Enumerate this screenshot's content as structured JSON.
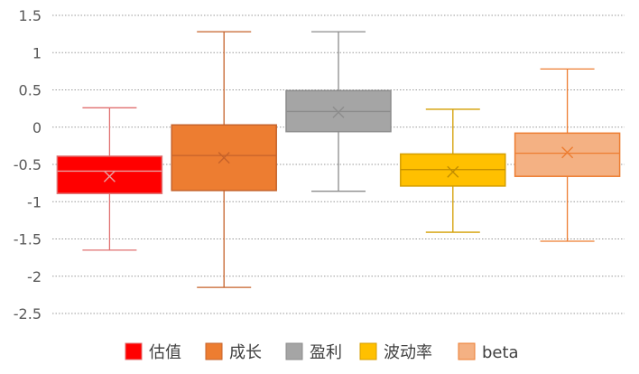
{
  "chart_data": {
    "type": "boxplot",
    "ylim": [
      -2.5,
      1.5
    ],
    "yticks": [
      "1.5",
      "1",
      "0.5",
      "0",
      "-0.5",
      "-1",
      "-1.5",
      "-2",
      "-2.5"
    ],
    "grid": "horizontal dotted",
    "legend_position": "bottom",
    "series": [
      {
        "name": "估值",
        "color": "#FF0000",
        "border": "#E07070",
        "mark": "#E8A0A0",
        "min": -1.65,
        "q1": -0.89,
        "median": -0.59,
        "q3": -0.39,
        "max": 0.26,
        "mean": -0.66
      },
      {
        "name": "成长",
        "color": "#ED7D31",
        "border": "#C5622A",
        "mark": "#C5622A",
        "min": -2.15,
        "q1": -0.85,
        "median": -0.38,
        "q3": 0.03,
        "max": 1.28,
        "mean": -0.41
      },
      {
        "name": "盈利",
        "color": "#A5A5A5",
        "border": "#8C8C8C",
        "mark": "#8C8C8C",
        "min": -0.86,
        "q1": -0.06,
        "median": 0.21,
        "q3": 0.49,
        "max": 1.28,
        "mean": 0.2
      },
      {
        "name": "波动率",
        "color": "#FFC000",
        "border": "#D49E00",
        "mark": "#C08C00",
        "min": -1.41,
        "q1": -0.79,
        "median": -0.57,
        "q3": -0.36,
        "max": 0.24,
        "mean": -0.6
      },
      {
        "name": "beta",
        "color": "#F4B183",
        "border": "#ED7D31",
        "mark": "#ED7D31",
        "min": -1.53,
        "q1": -0.66,
        "median": -0.35,
        "q3": -0.08,
        "max": 0.78,
        "mean": -0.34
      }
    ]
  }
}
